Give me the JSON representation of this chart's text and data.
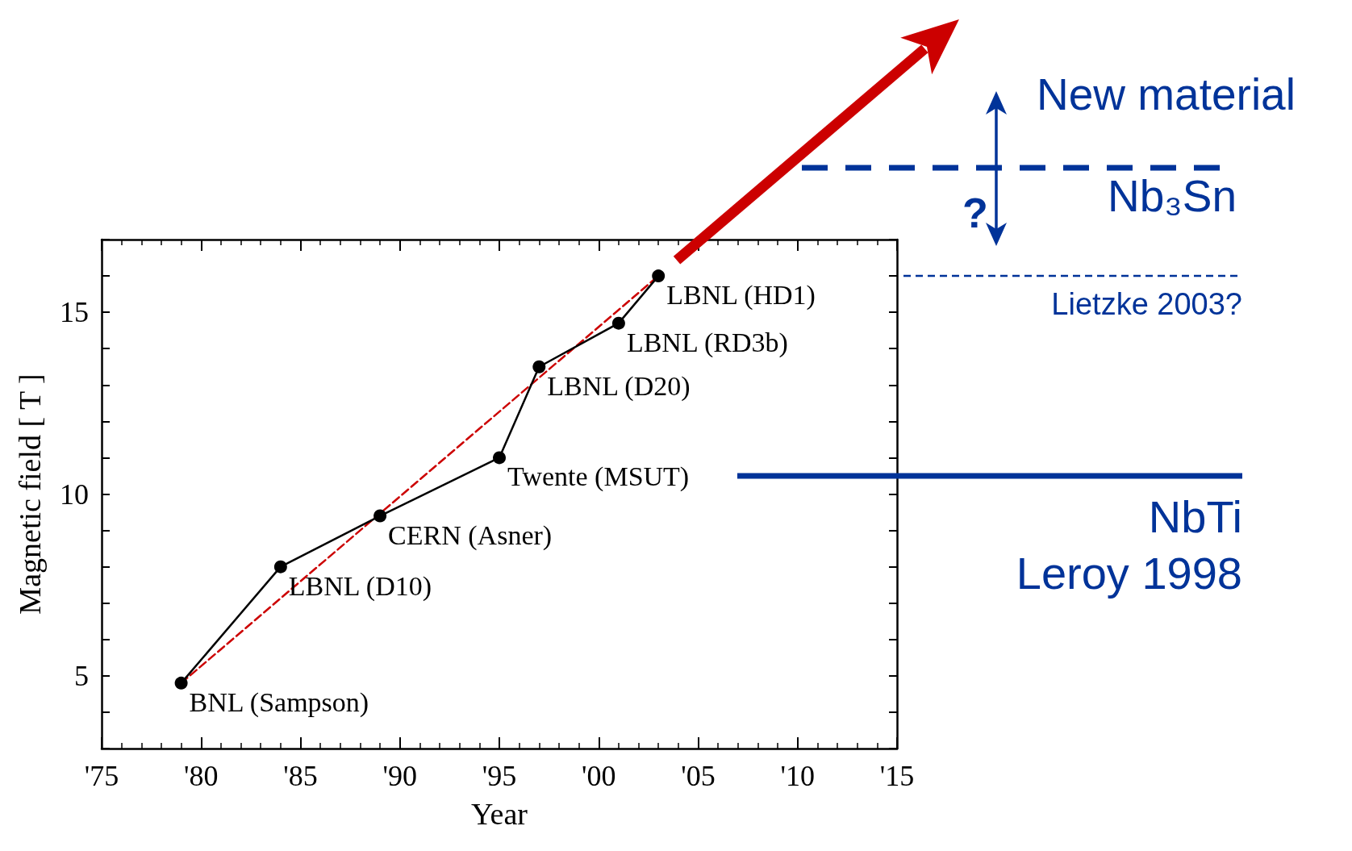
{
  "chart_data": {
    "type": "line",
    "xlabel": "Year",
    "ylabel": "Magnetic field [ T ]",
    "x": [
      1979,
      1984,
      1989,
      1995,
      1997,
      2001,
      2003
    ],
    "series": [
      {
        "color": "#000000",
        "values": [
          4.8,
          8.0,
          9.4,
          11.0,
          13.5,
          14.7,
          16.0
        ],
        "marker": "circle",
        "line_style": "solid"
      },
      {
        "color": "#cc0000",
        "x": [
          1979,
          2003
        ],
        "values": [
          4.8,
          16.0
        ],
        "marker": "none",
        "line_style": "dashed"
      }
    ],
    "xlim": [
      1975,
      2015
    ],
    "xticks": [
      {
        "value": 1975,
        "label": "'75"
      },
      {
        "value": 1980,
        "label": "'80"
      },
      {
        "value": 1985,
        "label": "'85"
      },
      {
        "value": 1990,
        "label": "'90"
      },
      {
        "value": 1995,
        "label": "'95"
      },
      {
        "value": 2000,
        "label": "'00"
      },
      {
        "value": 2005,
        "label": "'05"
      },
      {
        "value": 2010,
        "label": "'10"
      },
      {
        "value": 2015,
        "label": "'15"
      }
    ],
    "ylim": [
      3,
      17
    ],
    "yticks": [
      {
        "value": 3,
        "label": null
      },
      {
        "value": 4,
        "label": null
      },
      5,
      {
        "value": 6,
        "label": null
      },
      {
        "value": 7,
        "label": null
      },
      {
        "value": 8,
        "label": null
      },
      {
        "value": 9,
        "label": null
      },
      10,
      {
        "value": 11,
        "label": null
      },
      {
        "value": 12,
        "label": null
      },
      {
        "value": 13,
        "label": null
      },
      {
        "value": 14,
        "label": null
      },
      15,
      {
        "value": 16,
        "label": null
      },
      {
        "value": 17,
        "label": null
      }
    ],
    "grid": false,
    "ref_lines": [
      {
        "axis": "y",
        "value": 16.0,
        "label": "Lietzke 2003?",
        "color": "#003399",
        "line_style": "dashed"
      },
      {
        "axis": "y",
        "value": 10.5,
        "label": "NbTi\nLeroy 1998",
        "color": "#003399",
        "line_style": "solid"
      }
    ],
    "annotations": [
      {
        "text": "BNL (Sampson)",
        "x": 1979,
        "y": 4.8
      },
      {
        "text": "LBNL (D10)",
        "x": 1984,
        "y": 8.0
      },
      {
        "text": "CERN (Asner)",
        "x": 1989,
        "y": 9.4
      },
      {
        "text": "Twente (MSUT)",
        "x": 1995,
        "y": 11.0
      },
      {
        "text": "LBNL (D20)",
        "x": 1997,
        "y": 13.5
      },
      {
        "text": "LBNL (RD3b)",
        "x": 2001,
        "y": 14.7
      },
      {
        "text": "LBNL (HD1)",
        "x": 2003,
        "y": 16.0
      },
      "New material",
      "Nb₃Sn",
      "?"
    ]
  }
}
